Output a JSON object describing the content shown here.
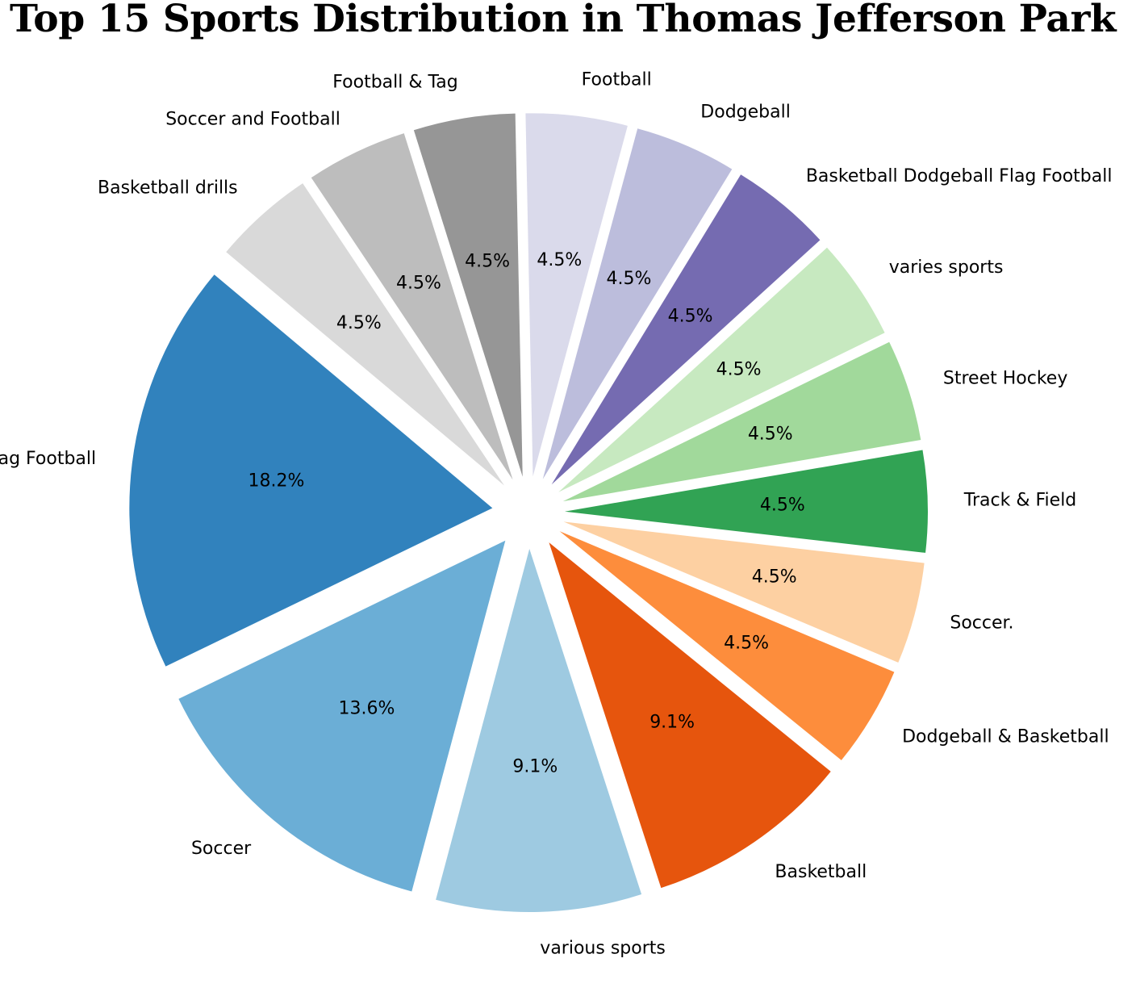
{
  "chart_data": {
    "type": "pie",
    "title": "Top 15 Sports Distribution in Thomas Jefferson Park",
    "slices": [
      {
        "label": "Flag Football",
        "percent": 18.2,
        "color": "#3182bd"
      },
      {
        "label": "Soccer",
        "percent": 13.6,
        "color": "#6baed6"
      },
      {
        "label": "various sports",
        "percent": 9.1,
        "color": "#9ecae1"
      },
      {
        "label": "Basketball",
        "percent": 9.1,
        "color": "#e6550d"
      },
      {
        "label": "Dodgeball & Basketball",
        "percent": 4.5,
        "color": "#fd8d3c"
      },
      {
        "label": "Soccer.",
        "percent": 4.5,
        "color": "#fdd0a2"
      },
      {
        "label": "Track & Field",
        "percent": 4.5,
        "color": "#31a354"
      },
      {
        "label": "Street Hockey",
        "percent": 4.5,
        "color": "#a1d99b"
      },
      {
        "label": "varies sports",
        "percent": 4.5,
        "color": "#c7e9c0"
      },
      {
        "label": "Basketball Dodgeball Flag Football",
        "percent": 4.5,
        "color": "#756bb1"
      },
      {
        "label": "Dodgeball",
        "percent": 4.5,
        "color": "#bcbddc"
      },
      {
        "label": "Football",
        "percent": 4.5,
        "color": "#dadaeb"
      },
      {
        "label": "Football & Tag",
        "percent": 4.5,
        "color": "#969696"
      },
      {
        "label": "Soccer and Football",
        "percent": 4.5,
        "color": "#bdbdbd"
      },
      {
        "label": "Basketball drills",
        "percent": 4.5,
        "color": "#d9d9d9"
      }
    ],
    "percent_format": "{v}%"
  }
}
